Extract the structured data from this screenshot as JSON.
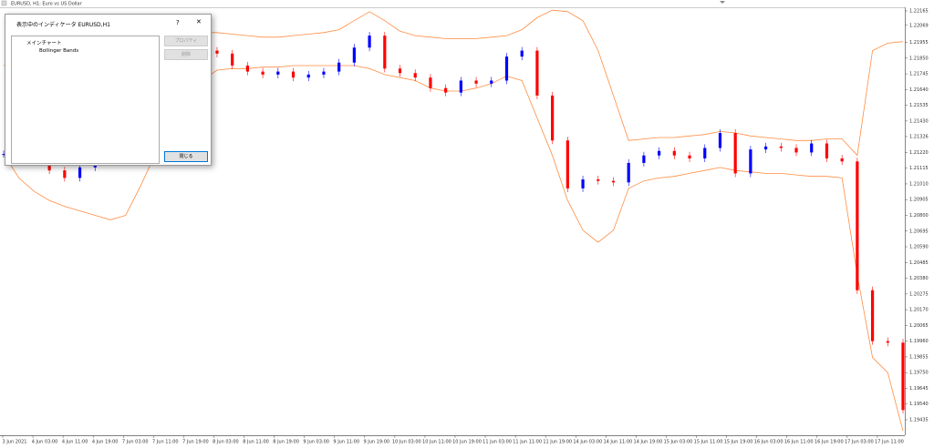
{
  "window": {
    "title": "EURUSD, H1:  Euro vs US Dollar"
  },
  "dialog": {
    "title": "表示中のインディケータ EURUSD,H1",
    "help": "?",
    "close": "✕",
    "tree": [
      "メインチャート",
      "Bollinger Bands"
    ],
    "buttons": [
      "プロパティ",
      "削除",
      "閉じる"
    ]
  },
  "chart": {
    "price_labels": [
      "1.22165",
      "1.22069",
      "1.21955",
      "1.21850",
      "1.21745",
      "1.21640",
      "1.21535",
      "1.21430",
      "1.21326",
      "1.21220",
      "1.21115",
      "1.21010",
      "1.20905",
      "1.20800",
      "1.20695",
      "1.20590",
      "1.20485",
      "1.20380",
      "1.20275",
      "1.20170",
      "1.20065",
      "1.19960",
      "1.19855",
      "1.19750",
      "1.19645",
      "1.19540",
      "1.19435"
    ],
    "time_labels": [
      "3 Jun 2021",
      "4 Jun 03:00",
      "4 Jun 11:00",
      "4 Jun 19:00",
      "7 Jun 03:00",
      "7 Jun 11:00",
      "7 Jun 19:00",
      "8 Jun 03:00",
      "8 Jun 11:00",
      "8 Jun 19:00",
      "9 Jun 03:00",
      "9 Jun 11:00",
      "9 Jun 19:00",
      "10 Jun 03:00",
      "10 Jun 11:00",
      "10 Jun 19:00",
      "11 Jun 03:00",
      "11 Jun 11:00",
      "11 Jun 19:00",
      "14 Jun 03:00",
      "14 Jun 11:00",
      "14 Jun 19:00",
      "15 Jun 03:00",
      "15 Jun 11:00",
      "15 Jun 19:00",
      "16 Jun 03:00",
      "16 Jun 11:00",
      "16 Jun 19:00",
      "17 Jun 03:00",
      "17 Jun 11:00"
    ],
    "closes": [
      1.2121,
      1.212,
      1.2118,
      1.211,
      1.2105,
      1.2112,
      1.215,
      1.217,
      1.218,
      1.2185,
      1.2188,
      1.219,
      1.2192,
      1.219,
      1.2188,
      1.218,
      1.2176,
      1.2174,
      1.2176,
      1.2172,
      1.2174,
      1.2176,
      1.2182,
      1.2192,
      1.22,
      1.2178,
      1.2175,
      1.2172,
      1.2165,
      1.2162,
      1.217,
      1.2168,
      1.217,
      1.2186,
      1.219,
      1.216,
      1.213,
      1.2098,
      1.2104,
      1.2103,
      1.2102,
      1.2115,
      1.212,
      1.2123,
      1.212,
      1.2118,
      1.2125,
      1.2135,
      1.2108,
      1.2124,
      1.2126,
      1.2125,
      1.2122,
      1.2128,
      1.2118,
      1.2116,
      1.203,
      1.1996,
      1.1995,
      1.195
    ],
    "band_upper": [
      1.218,
      1.2182,
      1.2184,
      1.2186,
      1.2188,
      1.219,
      1.2195,
      1.22,
      1.2205,
      1.2208,
      1.2208,
      1.2206,
      1.2204,
      1.2202,
      1.2202,
      1.2201,
      1.22,
      1.2199,
      1.2199,
      1.22,
      1.2201,
      1.2202,
      1.2204,
      1.221,
      1.2216,
      1.221,
      1.2203,
      1.22,
      1.2199,
      1.2198,
      1.2198,
      1.2198,
      1.2199,
      1.22,
      1.2204,
      1.2212,
      1.2217,
      1.2216,
      1.221,
      1.219,
      1.216,
      1.213,
      1.2131,
      1.2132,
      1.2132,
      1.2133,
      1.2134,
      1.2136,
      1.2135,
      1.2133,
      1.2132,
      1.2131,
      1.213,
      1.213,
      1.2131,
      1.2131,
      1.212,
      1.219,
      1.2195,
      1.2196
    ],
    "band_lower": [
      1.2121,
      1.2105,
      1.2096,
      1.209,
      1.2086,
      1.2083,
      1.208,
      1.2077,
      1.208,
      1.21,
      1.2122,
      1.2145,
      1.216,
      1.217,
      1.2177,
      1.2178,
      1.2178,
      1.2179,
      1.2179,
      1.218,
      1.218,
      1.218,
      1.218,
      1.218,
      1.2178,
      1.2174,
      1.2172,
      1.217,
      1.2165,
      1.2163,
      1.2163,
      1.2165,
      1.2168,
      1.2173,
      1.217,
      1.2145,
      1.212,
      1.209,
      1.207,
      1.2062,
      1.207,
      1.2098,
      1.2103,
      1.2105,
      1.2106,
      1.2108,
      1.211,
      1.2112,
      1.211,
      1.2109,
      1.2108,
      1.2108,
      1.2107,
      1.2106,
      1.2106,
      1.2105,
      1.204,
      1.1985,
      1.1975,
      1.1936
    ],
    "up_color": "#0000ff",
    "down_color": "#ff0000",
    "band_color": "#ff8c42"
  }
}
